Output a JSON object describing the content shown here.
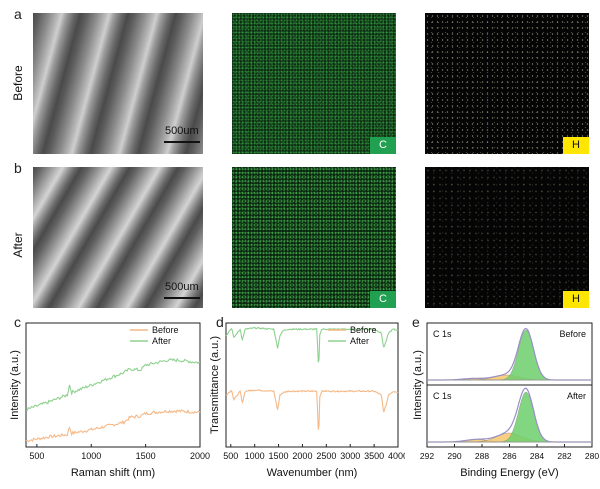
{
  "panels": {
    "a": {
      "letter": "a",
      "row_label": "Before",
      "scale_bar": "500um",
      "badge_c": "C",
      "badge_h": "H"
    },
    "b": {
      "letter": "b",
      "row_label": "After",
      "scale_bar": "500um",
      "badge_c": "C",
      "badge_h": "H"
    },
    "c": {
      "letter": "c"
    },
    "d": {
      "letter": "d"
    },
    "e": {
      "letter": "e"
    }
  },
  "colors": {
    "before": "#f6b886",
    "after": "#8fd18f",
    "fit_green": "#6ccf6c",
    "fit_orange": "#f4c76a",
    "envelope": "#9b8fc4"
  },
  "chart_data": [
    {
      "type": "line",
      "panel": "c",
      "xlabel": "Raman shift (nm)",
      "ylabel": "Intensity (a.u.)",
      "xlim": [
        400,
        2000
      ],
      "xticks": [
        "500",
        "1000",
        "1500",
        "2000"
      ],
      "legend": "top-right",
      "series": [
        {
          "name": "Before",
          "x": [
            400,
            600,
            780,
            800,
            820,
            1000,
            1150,
            1300,
            1360,
            1450,
            1500,
            1600,
            1700,
            1800,
            2000
          ],
          "y": [
            0.05,
            0.08,
            0.1,
            0.16,
            0.11,
            0.14,
            0.17,
            0.2,
            0.24,
            0.25,
            0.27,
            0.28,
            0.29,
            0.29,
            0.28
          ]
        },
        {
          "name": "After",
          "x": [
            400,
            600,
            780,
            800,
            820,
            1000,
            1150,
            1300,
            1360,
            1450,
            1500,
            1600,
            1700,
            1800,
            2000
          ],
          "y": [
            0.3,
            0.36,
            0.42,
            0.5,
            0.44,
            0.5,
            0.55,
            0.6,
            0.63,
            0.62,
            0.66,
            0.68,
            0.7,
            0.7,
            0.68
          ]
        }
      ]
    },
    {
      "type": "line",
      "panel": "d",
      "xlabel": "Wavenumber (nm)",
      "ylabel": "Transmittance (a.u.)",
      "xlim": [
        400,
        4000
      ],
      "xticks": [
        "500",
        "1000",
        "1500",
        "2000",
        "2500",
        "3000",
        "3500",
        "4000"
      ],
      "legend": "top-right",
      "series": [
        {
          "name": "Before",
          "x": [
            400,
            520,
            560,
            700,
            740,
            800,
            1000,
            1400,
            1480,
            1530,
            1600,
            1700,
            2000,
            2300,
            2340,
            2360,
            2400,
            2800,
            3000,
            3500,
            3650,
            3700,
            3760,
            3800,
            3900,
            4000
          ],
          "y": [
            0.42,
            0.46,
            0.38,
            0.45,
            0.35,
            0.45,
            0.46,
            0.45,
            0.3,
            0.42,
            0.44,
            0.45,
            0.45,
            0.45,
            0.05,
            0.4,
            0.45,
            0.45,
            0.45,
            0.45,
            0.42,
            0.28,
            0.35,
            0.42,
            0.45,
            0.44
          ]
        },
        {
          "name": "After",
          "x": [
            400,
            520,
            560,
            700,
            740,
            800,
            1000,
            1400,
            1480,
            1530,
            1600,
            1700,
            2000,
            2300,
            2340,
            2360,
            2400,
            2800,
            3000,
            3500,
            3650,
            3700,
            3760,
            3800,
            3900,
            4000
          ],
          "y": [
            0.9,
            0.96,
            0.88,
            0.95,
            0.86,
            0.95,
            0.96,
            0.95,
            0.8,
            0.9,
            0.94,
            0.95,
            0.95,
            0.95,
            0.6,
            0.9,
            0.95,
            0.95,
            0.95,
            0.95,
            0.92,
            0.8,
            0.86,
            0.92,
            0.95,
            0.94
          ]
        }
      ]
    },
    {
      "type": "area",
      "panel": "e",
      "xlabel": "Binding Energy (eV)",
      "ylabel": "Intensity (a.u.)",
      "xlim": [
        292,
        280
      ],
      "xticks": [
        "292",
        "290",
        "288",
        "286",
        "284",
        "282",
        "280"
      ],
      "subplots": [
        {
          "label_left": "C 1s",
          "label_right": "Before",
          "peaks": [
            {
              "center": 284.8,
              "height": 1.0,
              "width": 0.55
            },
            {
              "center": 286.2,
              "height": 0.1,
              "width": 0.9
            },
            {
              "center": 288.6,
              "height": 0.03,
              "width": 0.8
            }
          ]
        },
        {
          "label_left": "C 1s",
          "label_right": "After",
          "peaks": [
            {
              "center": 284.8,
              "height": 1.0,
              "width": 0.55
            },
            {
              "center": 286.0,
              "height": 0.18,
              "width": 0.9
            },
            {
              "center": 288.4,
              "height": 0.05,
              "width": 0.8
            }
          ]
        }
      ]
    }
  ]
}
